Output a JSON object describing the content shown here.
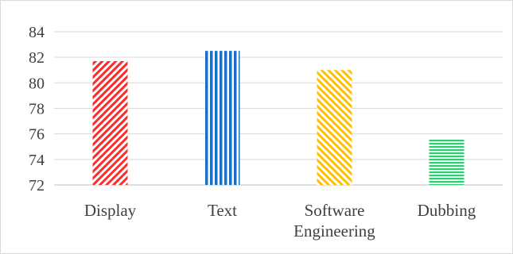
{
  "chart_data": {
    "type": "bar",
    "title": "",
    "xlabel": "",
    "ylabel": "",
    "categories": [
      "Display",
      "Text",
      "Software Engineering",
      "Dubbing"
    ],
    "category_label_lines": [
      [
        "Display"
      ],
      [
        "Text"
      ],
      [
        "Software",
        "Engineering"
      ],
      [
        "Dubbing"
      ]
    ],
    "values": [
      81.7,
      82.5,
      81.0,
      75.6
    ],
    "ylim": [
      72,
      84
    ],
    "yticks": [
      72,
      74,
      76,
      78,
      80,
      82,
      84
    ],
    "grid": true,
    "legend": "none",
    "bar_styles": [
      {
        "color": "#ff2a2a",
        "pattern": "diagonal-down"
      },
      {
        "color": "#1f6fbf",
        "pattern": "vertical"
      },
      {
        "color": "#ffc000",
        "pattern": "diagonal-up"
      },
      {
        "color": "#2ecc71",
        "pattern": "horizontal"
      }
    ]
  }
}
